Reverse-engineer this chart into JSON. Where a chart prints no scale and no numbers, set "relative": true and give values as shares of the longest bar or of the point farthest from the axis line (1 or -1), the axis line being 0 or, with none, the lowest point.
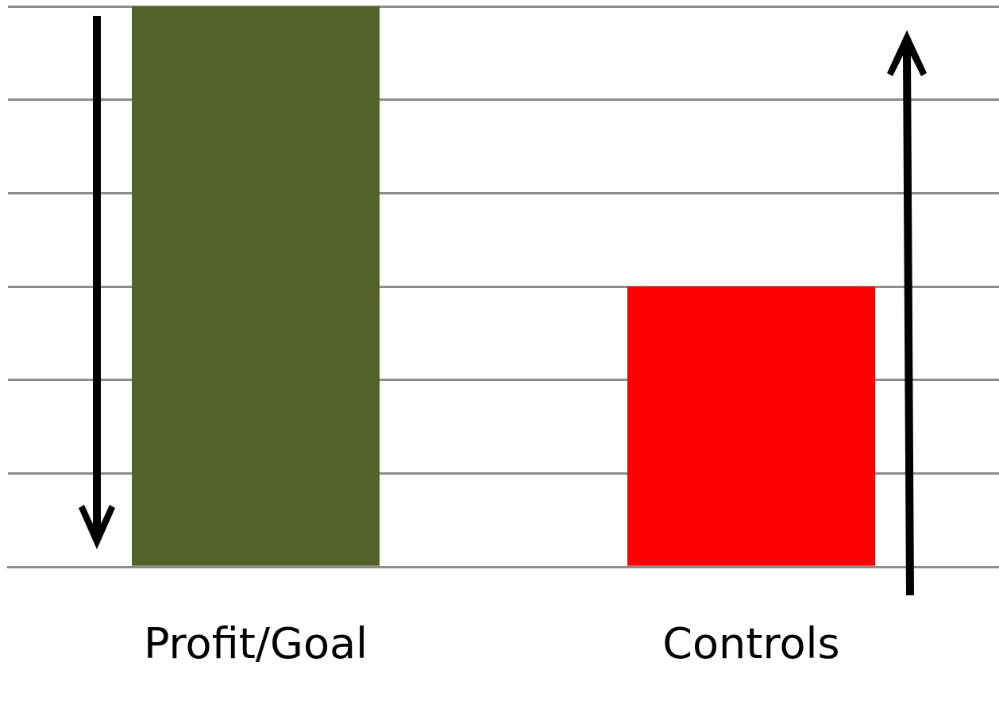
{
  "chart_data": {
    "type": "bar",
    "relative": true,
    "categories": [
      "Profit/Goal",
      "Controls"
    ],
    "values": [
      1,
      0.5
    ],
    "colors": [
      "#536229",
      "#ff0000"
    ],
    "grid": "y"
  }
}
